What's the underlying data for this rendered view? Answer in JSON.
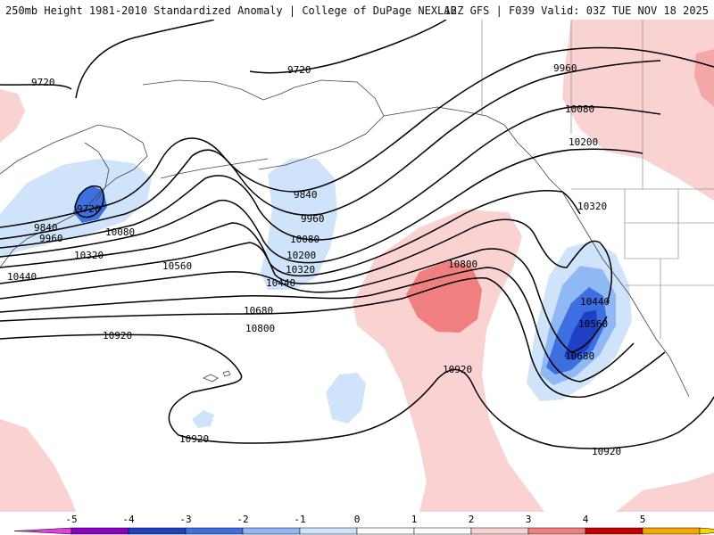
{
  "header": {
    "title_left": "250mb Height 1981-2010 Standardized Anomaly | College of DuPage NEXLAB",
    "title_right": "12Z GFS | F039 Valid: 03Z TUE NOV 18 2025"
  },
  "contour_labels": {
    "c9720a": "9720",
    "c9720b": "9720",
    "c9720c": "9720",
    "c9840a": "9840",
    "c9840b": "9840",
    "c9960a": "9960",
    "c9960b": "9960",
    "c9960c": "9960",
    "c10080a": "10080",
    "c10080b": "10080",
    "c10080c": "10080",
    "c10200a": "10200",
    "c10200b": "10200",
    "c10320a": "10320",
    "c10320b": "10320",
    "c10320c": "10320",
    "c10440a": "10440",
    "c10440b": "10440",
    "c10440c": "10440",
    "c10560a": "10560",
    "c10560b": "10560",
    "c10680a": "10680",
    "c10680b": "10680",
    "c10800a": "10800",
    "c10800b": "10800",
    "c10920a": "10920",
    "c10920b": "10920",
    "c10920c": "10920",
    "c10920d": "10920"
  },
  "colorbar": {
    "ticks": [
      "-5",
      "-4",
      "-3",
      "-2",
      "-1",
      "0",
      "1",
      "2",
      "3",
      "4",
      "5"
    ],
    "colors": [
      "#8b00c9",
      "#1f3fc4",
      "#3d6fe0",
      "#8fb8f5",
      "#cfe3fb",
      "#ffffff",
      "#ffffff",
      "#fbd2d2",
      "#f07f80",
      "#c20000",
      "#f3a700"
    ],
    "left_arrow_color": "#e040e0",
    "right_arrow_color": "#ffd400"
  }
}
